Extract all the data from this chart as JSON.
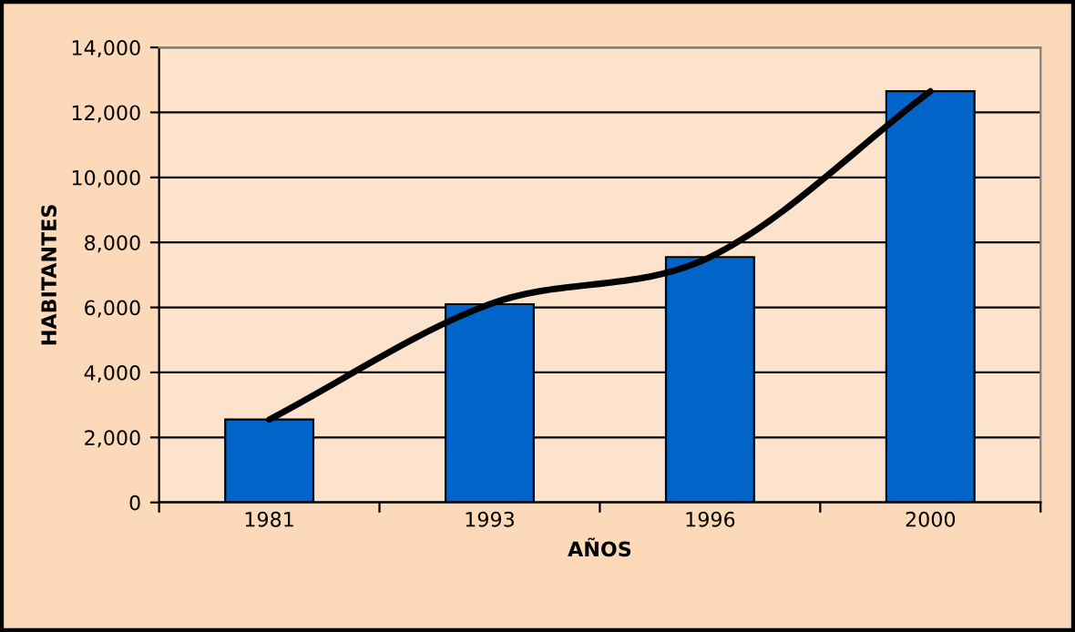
{
  "chart_data": {
    "type": "bar",
    "xlabel": "AÑOS",
    "ylabel": "HABITANTES",
    "categories": [
      "1981",
      "1993",
      "1996",
      "2000"
    ],
    "series": [
      {
        "color": "#0064c8",
        "values": [
          2550,
          6100,
          7550,
          12650
        ]
      },
      {
        "type": "line",
        "color": "#000000",
        "values": [
          2550,
          6100,
          7550,
          12650
        ]
      }
    ],
    "ylim": [
      0,
      14000
    ],
    "yticks": [
      {
        "value": 0,
        "label": "0"
      },
      {
        "value": 2000,
        "label": "2,000"
      },
      {
        "value": 4000,
        "label": "4,000"
      },
      {
        "value": 6000,
        "label": "6,000"
      },
      {
        "value": 8000,
        "label": "8,000"
      },
      {
        "value": 10000,
        "label": "10,000"
      },
      {
        "value": 12000,
        "label": "12,000"
      },
      {
        "value": 14000,
        "label": "14,000"
      }
    ],
    "grid": "y",
    "marker": "none",
    "line_style": "solid"
  }
}
